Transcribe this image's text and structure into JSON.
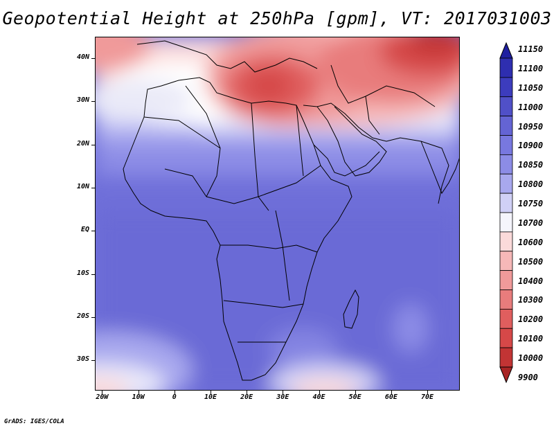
{
  "title": "Geopotential Height at 250hPa [gpm], VT: 2017031003",
  "credit": "GrADS: IGES/COLA",
  "map": {
    "lat_labels": [
      "40N",
      "30N",
      "20N",
      "10N",
      "EQ",
      "10S",
      "20S",
      "30S"
    ],
    "lat_values": [
      40,
      30,
      20,
      10,
      0,
      -10,
      -20,
      -30
    ],
    "lon_labels": [
      "20W",
      "10W",
      "0",
      "10E",
      "20E",
      "30E",
      "40E",
      "50E",
      "60E",
      "70E"
    ],
    "lon_values": [
      -20,
      -10,
      0,
      10,
      20,
      30,
      40,
      50,
      60,
      70
    ],
    "lon_range": [
      -22,
      79
    ],
    "lat_range": [
      -37,
      45
    ]
  },
  "colorbar": {
    "labels": [
      "11150",
      "11100",
      "11050",
      "11000",
      "10950",
      "10900",
      "10850",
      "10800",
      "10750",
      "10700",
      "10600",
      "10500",
      "10400",
      "10300",
      "10200",
      "10100",
      "10000",
      "9900"
    ],
    "colors": [
      "#1f1fa0",
      "#2e2eb0",
      "#3c3cbd",
      "#5050c8",
      "#6464d4",
      "#7878df",
      "#8c8ce6",
      "#a8a8ee",
      "#d0d0f6",
      "#f5f5fc",
      "#fbdada",
      "#f6b8b8",
      "#f09a9a",
      "#e87c7c",
      "#e05e5e",
      "#d64848",
      "#c23434",
      "#a82424"
    ]
  }
}
